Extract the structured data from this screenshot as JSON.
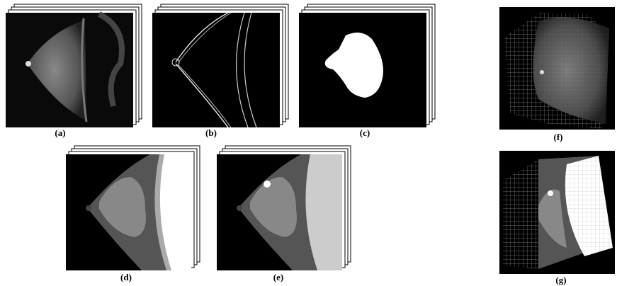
{
  "panels": [
    {
      "label": "(a)"
    },
    {
      "label": "(b)"
    },
    {
      "label": "(c)"
    },
    {
      "label": "(d)"
    },
    {
      "label": "(e)"
    },
    {
      "label": "(f)"
    },
    {
      "label": "(g)"
    }
  ]
}
